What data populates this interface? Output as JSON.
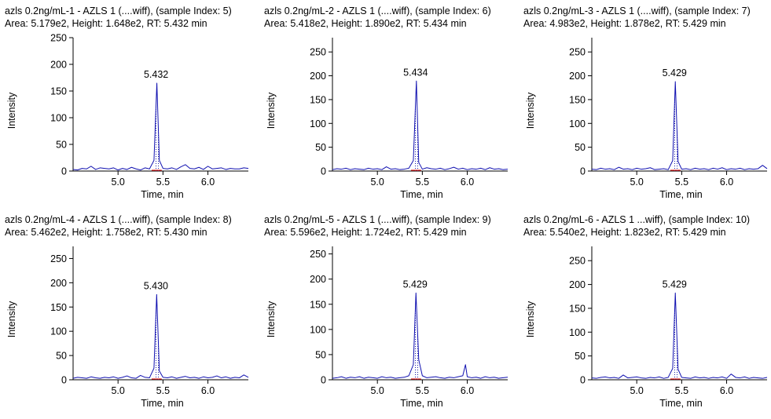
{
  "chart_data": [
    {
      "type": "line",
      "title": "azls 0.2ng/mL-1 - AZLS 1 (....wiff), (sample Index: 5)",
      "subtitle": "Area: 5.179e2, Height: 1.648e2, RT: 5.432 min",
      "xlabel": "Time, min",
      "ylabel": "Intensity",
      "xlim": [
        4.5,
        6.45
      ],
      "ylim": [
        0,
        250
      ],
      "xticks": [
        "5.0",
        "5.5",
        "6.0"
      ],
      "yticks": [
        "0",
        "50",
        "100",
        "150",
        "200",
        "250"
      ],
      "peak_label": "5.432",
      "peak_rt": 5.432,
      "peak_height": 164.8,
      "x": [
        4.5,
        4.55,
        4.6,
        4.65,
        4.7,
        4.75,
        4.8,
        4.85,
        4.9,
        4.95,
        5.0,
        5.05,
        5.1,
        5.15,
        5.2,
        5.25,
        5.3,
        5.35,
        5.4,
        5.432,
        5.46,
        5.5,
        5.55,
        5.6,
        5.65,
        5.7,
        5.75,
        5.8,
        5.85,
        5.9,
        5.95,
        6.0,
        6.05,
        6.1,
        6.15,
        6.2,
        6.25,
        6.3,
        6.35,
        6.4,
        6.45
      ],
      "y": [
        3,
        2,
        5,
        4,
        9,
        3,
        6,
        5,
        4,
        6,
        2,
        5,
        3,
        7,
        4,
        2,
        6,
        4,
        20,
        164.8,
        20,
        5,
        4,
        6,
        3,
        8,
        12,
        5,
        4,
        7,
        3,
        9,
        4,
        5,
        6,
        3,
        5,
        4,
        4,
        6,
        5
      ]
    },
    {
      "type": "line",
      "title": "azls 0.2ng/mL-2 - AZLS 1 (....wiff), (sample Index: 6)",
      "subtitle": "Area: 5.418e2, Height: 1.890e2, RT: 5.434 min",
      "xlabel": "Time, min",
      "ylabel": "Intensity",
      "xlim": [
        4.5,
        6.45
      ],
      "ylim": [
        0,
        280
      ],
      "xticks": [
        "5.0",
        "5.5",
        "6.0"
      ],
      "yticks": [
        "0",
        "50",
        "100",
        "150",
        "200",
        "250"
      ],
      "peak_label": "5.434",
      "peak_rt": 5.434,
      "peak_height": 189.0,
      "x": [
        4.5,
        4.55,
        4.6,
        4.65,
        4.7,
        4.75,
        4.8,
        4.85,
        4.9,
        4.95,
        5.0,
        5.05,
        5.1,
        5.15,
        5.2,
        5.25,
        5.3,
        5.35,
        5.4,
        5.434,
        5.46,
        5.5,
        5.55,
        5.6,
        5.65,
        5.7,
        5.75,
        5.8,
        5.85,
        5.9,
        5.95,
        6.0,
        6.05,
        6.1,
        6.15,
        6.2,
        6.25,
        6.3,
        6.35,
        6.4,
        6.45
      ],
      "y": [
        3,
        5,
        4,
        6,
        3,
        5,
        4,
        3,
        6,
        4,
        5,
        3,
        9,
        4,
        5,
        3,
        4,
        6,
        22,
        189.0,
        18,
        4,
        7,
        5,
        4,
        6,
        3,
        5,
        8,
        4,
        6,
        3,
        5,
        4,
        6,
        3,
        7,
        4,
        5,
        3,
        4
      ]
    },
    {
      "type": "line",
      "title": "azls 0.2ng/mL-3 - AZLS 1 (....wiff), (sample Index: 7)",
      "subtitle": "Area: 4.983e2, Height: 1.878e2, RT: 5.429 min",
      "xlabel": "Time, min",
      "ylabel": "Intensity",
      "xlim": [
        4.5,
        6.45
      ],
      "ylim": [
        0,
        280
      ],
      "xticks": [
        "5.0",
        "5.5",
        "6.0"
      ],
      "yticks": [
        "0",
        "50",
        "100",
        "150",
        "200",
        "250"
      ],
      "peak_label": "5.429",
      "peak_rt": 5.429,
      "peak_height": 187.8,
      "x": [
        4.5,
        4.55,
        4.6,
        4.65,
        4.7,
        4.75,
        4.8,
        4.85,
        4.9,
        4.95,
        5.0,
        5.05,
        5.1,
        5.15,
        5.2,
        5.25,
        5.3,
        5.35,
        5.4,
        5.429,
        5.46,
        5.5,
        5.55,
        5.6,
        5.65,
        5.7,
        5.75,
        5.8,
        5.85,
        5.9,
        5.95,
        6.0,
        6.05,
        6.1,
        6.15,
        6.2,
        6.25,
        6.3,
        6.35,
        6.4,
        6.45
      ],
      "y": [
        4,
        3,
        6,
        4,
        5,
        3,
        8,
        4,
        5,
        3,
        6,
        4,
        5,
        7,
        3,
        4,
        5,
        3,
        22,
        187.8,
        20,
        4,
        5,
        3,
        6,
        4,
        5,
        3,
        6,
        4,
        7,
        3,
        5,
        4,
        6,
        3,
        5,
        4,
        5,
        12,
        5
      ]
    },
    {
      "type": "line",
      "title": "azls 0.2ng/mL-4 - AZLS 1 (....wiff), (sample Index: 8)",
      "subtitle": "Area: 5.462e2, Height: 1.758e2, RT: 5.430 min",
      "xlabel": "Time, min",
      "ylabel": "Intensity",
      "xlim": [
        4.5,
        6.45
      ],
      "ylim": [
        0,
        275
      ],
      "xticks": [
        "5.0",
        "5.5",
        "6.0"
      ],
      "yticks": [
        "0",
        "50",
        "100",
        "150",
        "200",
        "250"
      ],
      "peak_label": "5.430",
      "peak_rt": 5.43,
      "peak_height": 175.8,
      "x": [
        4.5,
        4.55,
        4.6,
        4.65,
        4.7,
        4.75,
        4.8,
        4.85,
        4.9,
        4.95,
        5.0,
        5.05,
        5.1,
        5.15,
        5.2,
        5.25,
        5.3,
        5.35,
        5.4,
        5.43,
        5.46,
        5.5,
        5.55,
        5.6,
        5.65,
        5.7,
        5.75,
        5.8,
        5.85,
        5.9,
        5.95,
        6.0,
        6.05,
        6.1,
        6.15,
        6.2,
        6.25,
        6.3,
        6.35,
        6.4,
        6.45
      ],
      "y": [
        3,
        5,
        4,
        3,
        6,
        4,
        3,
        5,
        4,
        6,
        3,
        5,
        8,
        4,
        3,
        9,
        5,
        4,
        24,
        175.8,
        18,
        5,
        4,
        6,
        3,
        5,
        7,
        4,
        5,
        3,
        6,
        4,
        5,
        8,
        4,
        6,
        3,
        5,
        4,
        10,
        5
      ]
    },
    {
      "type": "line",
      "title": "azls 0.2ng/mL-5 - AZLS 1 (....wiff), (sample Index: 9)",
      "subtitle": "Area: 5.596e2, Height: 1.724e2, RT: 5.429 min",
      "xlabel": "Time, min",
      "ylabel": "Intensity",
      "xlim": [
        4.5,
        6.45
      ],
      "ylim": [
        0,
        265
      ],
      "xticks": [
        "5.0",
        "5.5",
        "6.0"
      ],
      "yticks": [
        "0",
        "50",
        "100",
        "150",
        "200",
        "250"
      ],
      "peak_label": "5.429",
      "peak_rt": 5.429,
      "peak_height": 172.4,
      "x": [
        4.5,
        4.55,
        4.6,
        4.65,
        4.7,
        4.75,
        4.8,
        4.85,
        4.9,
        4.95,
        5.0,
        5.05,
        5.1,
        5.15,
        5.2,
        5.25,
        5.3,
        5.35,
        5.4,
        5.429,
        5.46,
        5.5,
        5.55,
        5.6,
        5.65,
        5.7,
        5.75,
        5.8,
        5.85,
        5.9,
        5.95,
        5.98,
        6.0,
        6.05,
        6.1,
        6.15,
        6.2,
        6.25,
        6.3,
        6.35,
        6.4,
        6.45
      ],
      "y": [
        3,
        4,
        6,
        3,
        5,
        4,
        6,
        3,
        5,
        4,
        3,
        6,
        4,
        5,
        3,
        4,
        5,
        8,
        30,
        172.4,
        40,
        8,
        4,
        5,
        6,
        4,
        3,
        5,
        4,
        6,
        8,
        30,
        6,
        4,
        5,
        3,
        6,
        4,
        5,
        3,
        4,
        5
      ]
    },
    {
      "type": "line",
      "title": "azls 0.2ng/mL-6 - AZLS 1 ...wiff), (sample Index: 10)",
      "subtitle": "Area: 5.540e2, Height: 1.823e2, RT: 5.429 min",
      "xlabel": "Time, min",
      "ylabel": "Intensity",
      "xlim": [
        4.5,
        6.45
      ],
      "ylim": [
        0,
        280
      ],
      "xticks": [
        "5.0",
        "5.5",
        "6.0"
      ],
      "yticks": [
        "0",
        "50",
        "100",
        "150",
        "200",
        "250"
      ],
      "peak_label": "5.429",
      "peak_rt": 5.429,
      "peak_height": 182.3,
      "x": [
        4.5,
        4.55,
        4.6,
        4.65,
        4.7,
        4.75,
        4.8,
        4.85,
        4.9,
        4.95,
        5.0,
        5.05,
        5.1,
        5.15,
        5.2,
        5.25,
        5.3,
        5.35,
        5.4,
        5.429,
        5.46,
        5.5,
        5.55,
        5.6,
        5.65,
        5.7,
        5.75,
        5.8,
        5.85,
        5.9,
        5.95,
        6.0,
        6.05,
        6.1,
        6.15,
        6.2,
        6.25,
        6.3,
        6.35,
        6.4,
        6.45
      ],
      "y": [
        4,
        3,
        5,
        6,
        4,
        5,
        3,
        10,
        4,
        5,
        6,
        4,
        3,
        5,
        4,
        6,
        3,
        5,
        24,
        182.3,
        22,
        5,
        4,
        3,
        6,
        4,
        5,
        3,
        5,
        4,
        6,
        3,
        12,
        5,
        4,
        6,
        3,
        5,
        4,
        3,
        5
      ]
    }
  ]
}
